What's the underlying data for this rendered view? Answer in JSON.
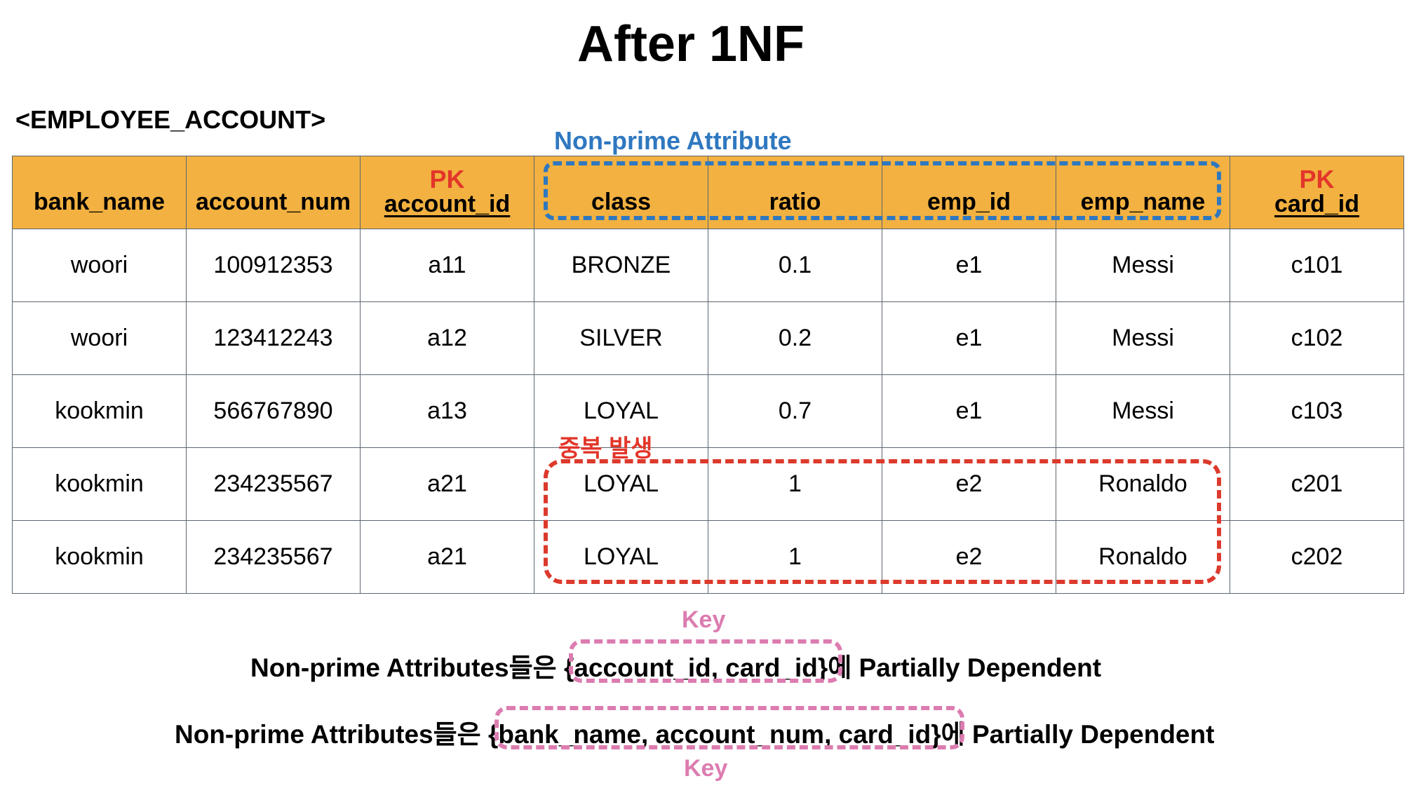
{
  "title": "After 1NF",
  "table_name": "<EMPLOYEE_ACCOUNT>",
  "annotations": {
    "non_prime_label": "Non-prime Attribute",
    "pk_label": "PK",
    "duplication_label": "중복 발생",
    "key_label": "Key"
  },
  "columns": [
    {
      "name": "bank_name",
      "pk": false
    },
    {
      "name": "account_num",
      "pk": false
    },
    {
      "name": "account_id",
      "pk": true
    },
    {
      "name": "class",
      "pk": false
    },
    {
      "name": "ratio",
      "pk": false
    },
    {
      "name": "emp_id",
      "pk": false
    },
    {
      "name": "emp_name",
      "pk": false
    },
    {
      "name": "card_id",
      "pk": true
    }
  ],
  "rows": [
    [
      "woori",
      "100912353",
      "a11",
      "BRONZE",
      "0.1",
      "e1",
      "Messi",
      "c101"
    ],
    [
      "woori",
      "123412243",
      "a12",
      "SILVER",
      "0.2",
      "e1",
      "Messi",
      "c102"
    ],
    [
      "kookmin",
      "566767890",
      "a13",
      "LOYAL",
      "0.7",
      "e1",
      "Messi",
      "c103"
    ],
    [
      "kookmin",
      "234235567",
      "a21",
      "LOYAL",
      "1",
      "e2",
      "Ronaldo",
      "c201"
    ],
    [
      "kookmin",
      "234235567",
      "a21",
      "LOYAL",
      "1",
      "e2",
      "Ronaldo",
      "c202"
    ]
  ],
  "dependencies": [
    {
      "prefix": "Non-prime Attributes들은 ",
      "key": "{account_id, card_id}",
      "suffix": "에 Partially Dependent"
    },
    {
      "prefix": "Non-prime Attributes들은 ",
      "key": "{bank_name, account_num, card_id}",
      "suffix": "에 Partially Dependent"
    }
  ],
  "colors": {
    "header_bg": "#f2b140",
    "pk_red": "#e3362a",
    "non_prime_blue": "#2f78c0",
    "key_pink": "#dc7cb0"
  }
}
